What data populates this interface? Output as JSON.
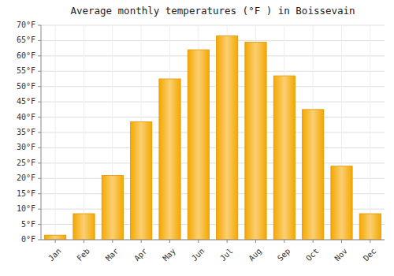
{
  "chart_data": {
    "type": "bar",
    "title": "Average monthly temperatures (°F ) in Boissevain",
    "categories": [
      "Jan",
      "Feb",
      "Mar",
      "Apr",
      "May",
      "Jun",
      "Jul",
      "Aug",
      "Sep",
      "Oct",
      "Nov",
      "Dec"
    ],
    "values": [
      1.5,
      8.5,
      21,
      38.5,
      52.5,
      62,
      66.5,
      64.5,
      53.5,
      42.5,
      24,
      8.5
    ],
    "color": "#F5A800",
    "ylim": [
      0,
      70
    ],
    "yticks": [
      {
        "value": 0,
        "label": "0°F"
      },
      {
        "value": 5,
        "label": "5°F"
      },
      {
        "value": 10,
        "label": "10°F"
      },
      {
        "value": 15,
        "label": "15°F"
      },
      {
        "value": 20,
        "label": "20°F"
      },
      {
        "value": 25,
        "label": "25°F"
      },
      {
        "value": 30,
        "label": "30°F"
      },
      {
        "value": 35,
        "label": "35°F"
      },
      {
        "value": 40,
        "label": "40°F"
      },
      {
        "value": 45,
        "label": "45°F"
      },
      {
        "value": 50,
        "label": "50°F"
      },
      {
        "value": 55,
        "label": "55°F"
      },
      {
        "value": 60,
        "label": "60°F"
      },
      {
        "value": 65,
        "label": "65°F"
      },
      {
        "value": 70,
        "label": "70°F"
      }
    ],
    "grid": true
  }
}
